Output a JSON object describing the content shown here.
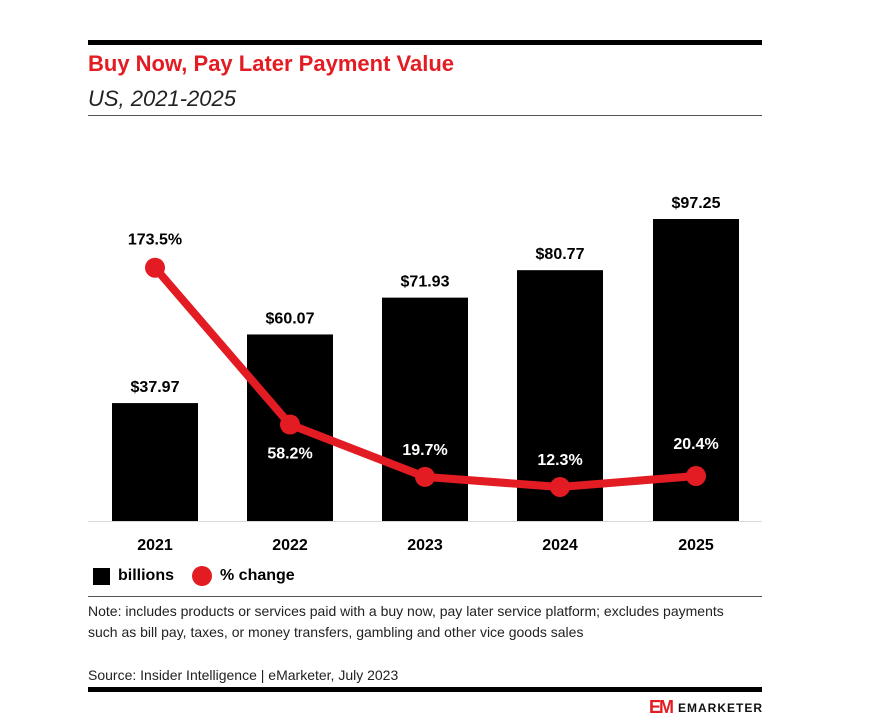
{
  "header": {
    "title": "Buy Now, Pay Later Payment Value",
    "subtitle": "US, 2021-2025"
  },
  "colors": {
    "bar": "#000000",
    "line": "#e31b23",
    "title": "#e31b23"
  },
  "chart_data": {
    "type": "bar",
    "categories": [
      "2021",
      "2022",
      "2023",
      "2024",
      "2025"
    ],
    "series": [
      {
        "name": "billions",
        "type": "bar",
        "values": [
          37.97,
          60.07,
          71.93,
          80.77,
          97.25
        ],
        "labels": [
          "$37.97",
          "$60.07",
          "$71.93",
          "$80.77",
          "$97.25"
        ]
      },
      {
        "name": "% change",
        "type": "line",
        "values": [
          173.5,
          58.2,
          19.7,
          12.3,
          20.4
        ],
        "labels": [
          "173.5%",
          "58.2%",
          "19.7%",
          "12.3%",
          "20.4%"
        ]
      }
    ],
    "title": "Buy Now, Pay Later Payment Value",
    "subtitle": "US, 2021-2025",
    "grid": false,
    "legend_position": "bottom-left"
  },
  "legend": {
    "bar_label": "billions",
    "line_label": "% change"
  },
  "footer": {
    "note": "Note: includes products or services paid with a buy now, pay later service platform; excludes payments such as bill pay, taxes, or money transfers, gambling and other vice goods sales",
    "source": "Source: Insider Intelligence | eMarketer, July 2023",
    "logo_mark": "EM",
    "logo_text": "EMARKETER"
  }
}
